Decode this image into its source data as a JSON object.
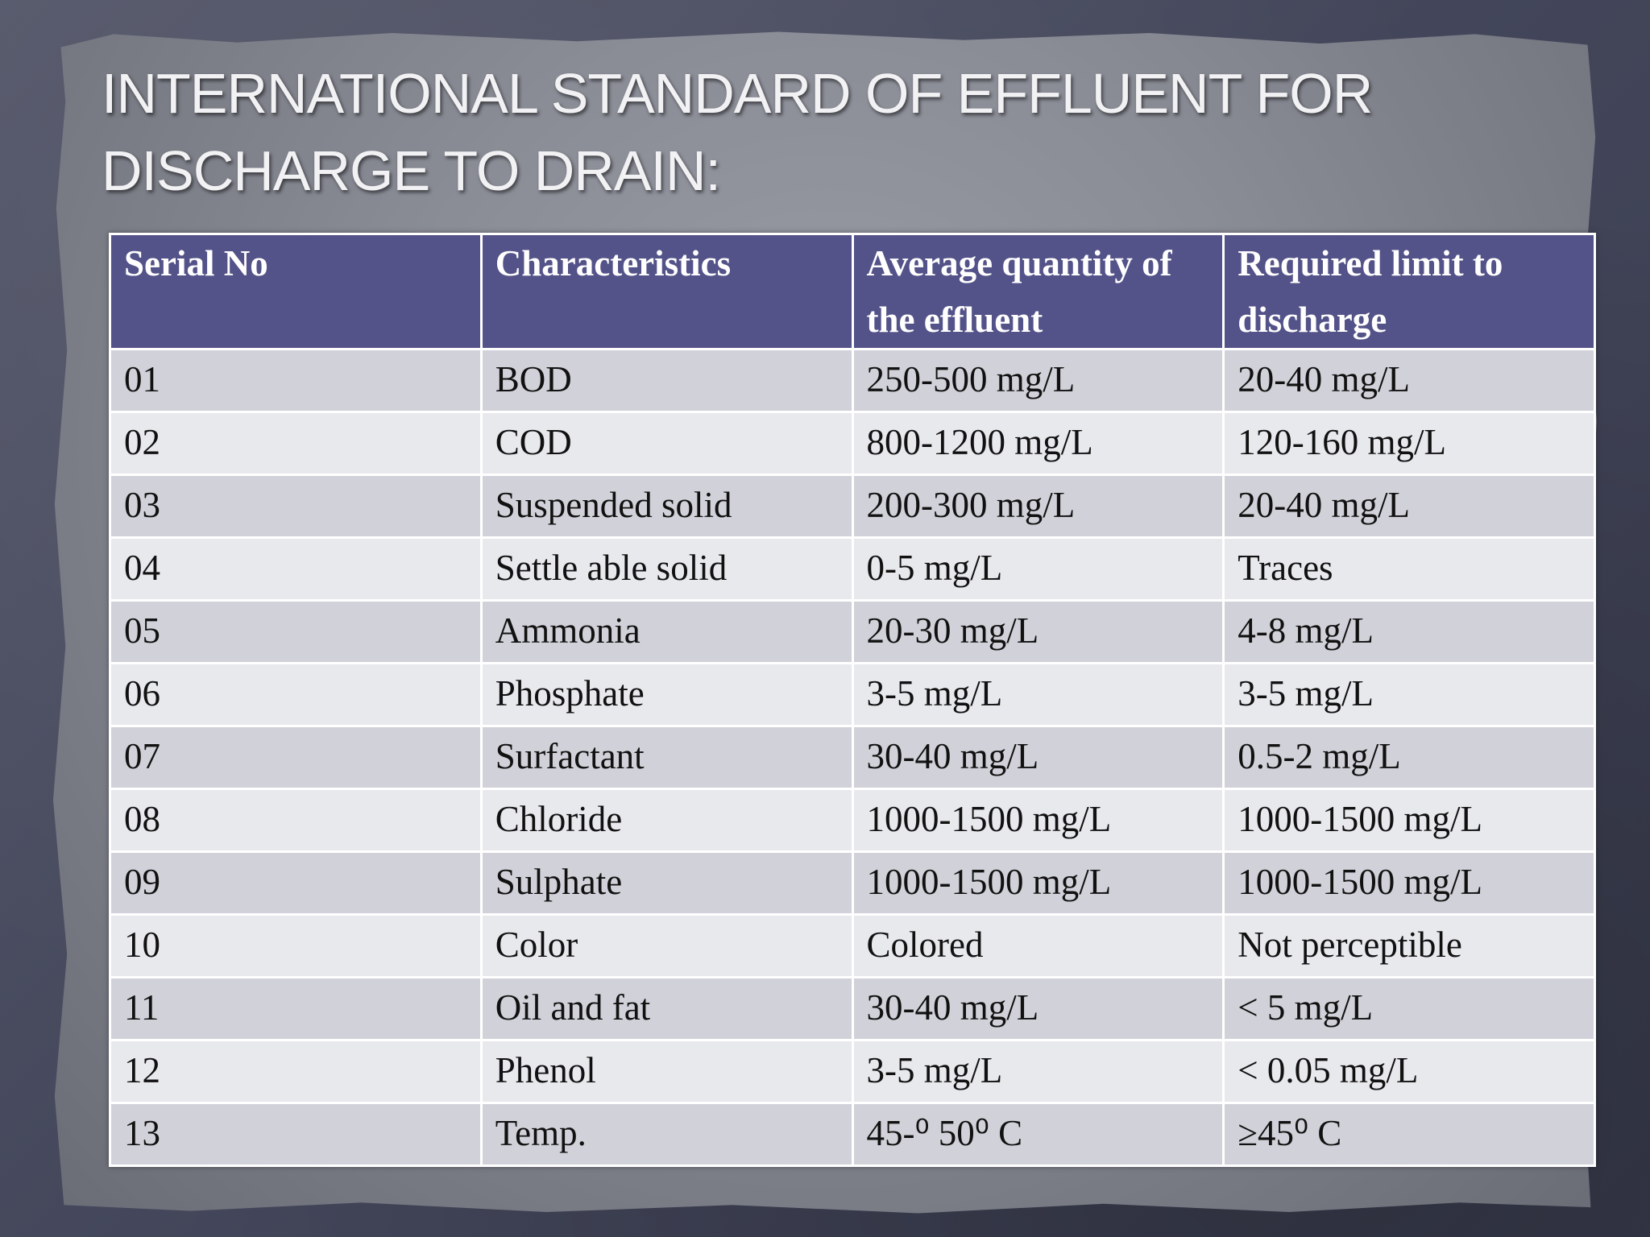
{
  "title": "INTERNATIONAL STANDARD OF EFFLUENT FOR DISCHARGE TO DRAIN:",
  "table": {
    "headers": [
      "Serial No",
      "Characteristics",
      "Average quantity of the effluent",
      "Required limit to discharge"
    ],
    "rows": [
      [
        "01",
        "BOD",
        "250-500 mg/L",
        "20-40 mg/L"
      ],
      [
        "02",
        "COD",
        "800-1200 mg/L",
        "120-160 mg/L"
      ],
      [
        "03",
        "Suspended solid",
        "200-300  mg/L",
        "20-40 mg/L"
      ],
      [
        "04",
        "Settle able solid",
        "0-5  mg/L",
        "Traces"
      ],
      [
        "05",
        "Ammonia",
        "20-30  mg/L",
        "4-8  mg/L"
      ],
      [
        "06",
        "Phosphate",
        "3-5  mg/L",
        "3-5  mg/L"
      ],
      [
        "07",
        "Surfactant",
        "30-40  mg/L",
        "0.5-2  mg/L"
      ],
      [
        "08",
        "Chloride",
        "1000-1500  mg/L",
        "1000-1500  mg/L"
      ],
      [
        "09",
        "Sulphate",
        "1000-1500  mg/L",
        "1000-1500  mg/L"
      ],
      [
        "10",
        "Color",
        "Colored",
        "Not perceptible"
      ],
      [
        "11",
        "Oil and fat",
        "30-40  mg/L",
        "< 5  mg/L"
      ],
      [
        "12",
        "Phenol",
        "3-5  mg/L",
        "< 0.05  mg/L"
      ],
      [
        "13",
        "Temp.",
        "45-⁰ 50⁰ C",
        " ≥45⁰ C"
      ]
    ]
  },
  "colors": {
    "header_background": "#545389",
    "row_odd": "#d1d2d9",
    "row_even": "#e8e9ed"
  }
}
